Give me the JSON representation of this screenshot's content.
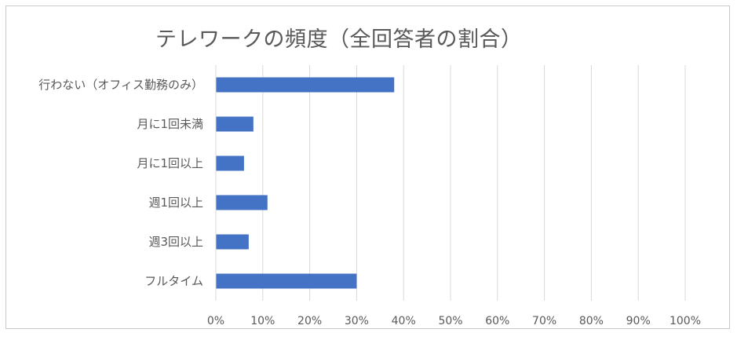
{
  "chart_data": {
    "type": "bar",
    "orientation": "horizontal",
    "title": "テレワークの頻度（全回答者の割合）",
    "categories": [
      "行わない（オフィス勤務のみ）",
      "月に1回未満",
      "月に1回以上",
      "週1回以上",
      "週3回以上",
      "フルタイム"
    ],
    "values": [
      38,
      8,
      6,
      11,
      7,
      30
    ],
    "xlim": [
      0,
      100
    ],
    "xticks": [
      "0%",
      "10%",
      "20%",
      "30%",
      "40%",
      "50%",
      "60%",
      "70%",
      "80%",
      "90%",
      "100%"
    ],
    "grid": "vertical",
    "legend": "none",
    "bar_color": "#4472c4",
    "grid_color": "#d9d9d9"
  }
}
